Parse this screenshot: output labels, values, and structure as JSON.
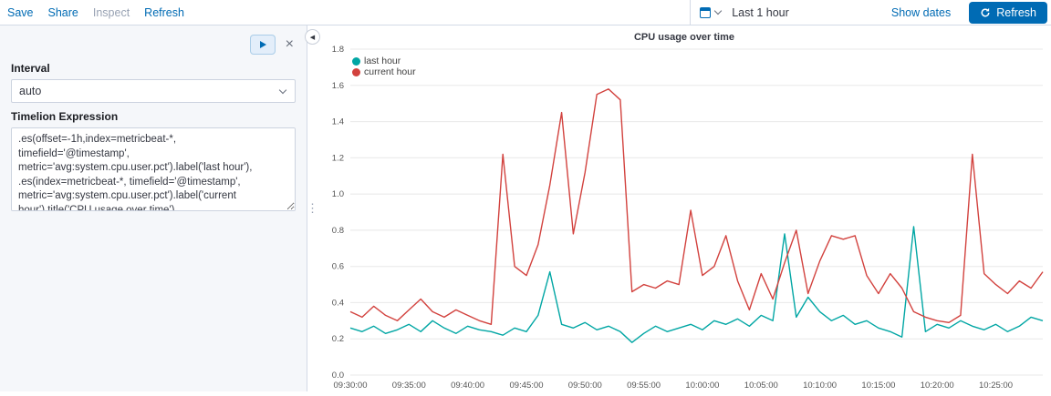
{
  "colors": {
    "primary": "#006bb4",
    "panel_border": "#d3dae6"
  },
  "topbar": {
    "save": "Save",
    "share": "Share",
    "inspect": "Inspect",
    "refresh": "Refresh",
    "time_value": "Last 1 hour",
    "show_dates": "Show dates",
    "refresh_button": "Refresh"
  },
  "sidebar": {
    "interval_label": "Interval",
    "interval_value": "auto",
    "expression_label": "Timelion Expression",
    "expression_value": ".es(offset=-1h,index=metricbeat-*, timefield='@timestamp', metric='avg:system.cpu.user.pct').label('last hour'),\n.es(index=metricbeat-*, timefield='@timestamp', metric='avg:system.cpu.user.pct').label('current hour').title('CPU usage over time')"
  },
  "chart_data": {
    "type": "line",
    "title": "CPU usage over time",
    "xlabel": "",
    "ylabel": "",
    "ylim": [
      0,
      1.8
    ],
    "yticks": [
      0.0,
      0.2,
      0.4,
      0.6,
      0.8,
      1.0,
      1.2,
      1.4,
      1.6,
      1.8
    ],
    "grid": true,
    "legend_position": "top-left",
    "x_unit": "minutes from 09:30:00, 1-min interval",
    "xticks": [
      {
        "index": 0,
        "label": "09:30:00"
      },
      {
        "index": 5,
        "label": "09:35:00"
      },
      {
        "index": 10,
        "label": "09:40:00"
      },
      {
        "index": 15,
        "label": "09:45:00"
      },
      {
        "index": 20,
        "label": "09:50:00"
      },
      {
        "index": 25,
        "label": "09:55:00"
      },
      {
        "index": 30,
        "label": "10:00:00"
      },
      {
        "index": 35,
        "label": "10:05:00"
      },
      {
        "index": 40,
        "label": "10:10:00"
      },
      {
        "index": 45,
        "label": "10:15:00"
      },
      {
        "index": 50,
        "label": "10:20:00"
      },
      {
        "index": 55,
        "label": "10:25:00"
      }
    ],
    "series": [
      {
        "name": "last hour",
        "color": "#01a6a4",
        "values": [
          0.26,
          0.24,
          0.27,
          0.23,
          0.25,
          0.28,
          0.24,
          0.3,
          0.26,
          0.23,
          0.27,
          0.25,
          0.24,
          0.22,
          0.26,
          0.24,
          0.33,
          0.57,
          0.28,
          0.26,
          0.29,
          0.25,
          0.27,
          0.24,
          0.18,
          0.23,
          0.27,
          0.24,
          0.26,
          0.28,
          0.25,
          0.3,
          0.28,
          0.31,
          0.27,
          0.33,
          0.3,
          0.78,
          0.32,
          0.43,
          0.35,
          0.3,
          0.33,
          0.28,
          0.3,
          0.26,
          0.24,
          0.21,
          0.82,
          0.24,
          0.28,
          0.26,
          0.3,
          0.27,
          0.25,
          0.28,
          0.24,
          0.27,
          0.32,
          0.3
        ]
      },
      {
        "name": "current hour",
        "color": "#d2423e",
        "values": [
          0.35,
          0.32,
          0.38,
          0.33,
          0.3,
          0.36,
          0.42,
          0.35,
          0.32,
          0.36,
          0.33,
          0.3,
          0.28,
          1.22,
          0.6,
          0.55,
          0.72,
          1.05,
          1.45,
          0.78,
          1.12,
          1.55,
          1.58,
          1.52,
          0.46,
          0.5,
          0.48,
          0.52,
          0.5,
          0.91,
          0.55,
          0.6,
          0.77,
          0.52,
          0.36,
          0.56,
          0.42,
          0.62,
          0.8,
          0.45,
          0.63,
          0.77,
          0.75,
          0.77,
          0.55,
          0.45,
          0.56,
          0.48,
          0.35,
          0.32,
          0.3,
          0.29,
          0.33,
          1.22,
          0.56,
          0.5,
          0.45,
          0.52,
          0.48,
          0.57
        ]
      }
    ]
  }
}
